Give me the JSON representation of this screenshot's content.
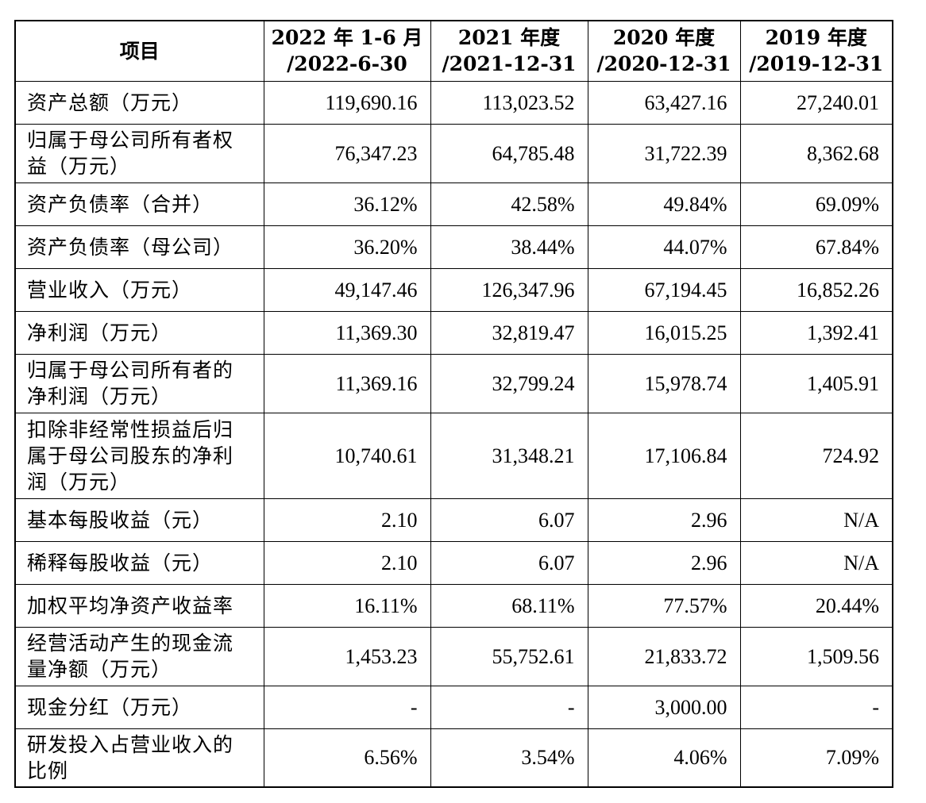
{
  "table": {
    "headers": [
      {
        "line1": "项目",
        "line2": ""
      },
      {
        "line1": "2022 年 1-6 月",
        "line2": "/2022-6-30"
      },
      {
        "line1": "2021 年度",
        "line2": "/2021-12-31"
      },
      {
        "line1": "2020 年度",
        "line2": "/2020-12-31"
      },
      {
        "line1": "2019 年度",
        "line2": "/2019-12-31"
      }
    ],
    "rows": [
      {
        "label": [
          "资产总额（万元）"
        ],
        "values": [
          "119,690.16",
          "113,023.52",
          "63,427.16",
          "27,240.01"
        ]
      },
      {
        "label": [
          "归属于母公司所有者权",
          "益（万元）"
        ],
        "values": [
          "76,347.23",
          "64,785.48",
          "31,722.39",
          "8,362.68"
        ]
      },
      {
        "label": [
          "资产负债率（合并）"
        ],
        "values": [
          "36.12%",
          "42.58%",
          "49.84%",
          "69.09%"
        ]
      },
      {
        "label": [
          "资产负债率（母公司）"
        ],
        "values": [
          "36.20%",
          "38.44%",
          "44.07%",
          "67.84%"
        ]
      },
      {
        "label": [
          "营业收入（万元）"
        ],
        "values": [
          "49,147.46",
          "126,347.96",
          "67,194.45",
          "16,852.26"
        ]
      },
      {
        "label": [
          "净利润（万元）"
        ],
        "values": [
          "11,369.30",
          "32,819.47",
          "16,015.25",
          "1,392.41"
        ]
      },
      {
        "label": [
          "归属于母公司所有者的",
          "净利润（万元）"
        ],
        "values": [
          "11,369.16",
          "32,799.24",
          "15,978.74",
          "1,405.91"
        ]
      },
      {
        "label": [
          "扣除非经常性损益后归",
          "属于母公司股东的净利",
          "润（万元）"
        ],
        "values": [
          "10,740.61",
          "31,348.21",
          "17,106.84",
          "724.92"
        ]
      },
      {
        "label": [
          "基本每股收益（元）"
        ],
        "values": [
          "2.10",
          "6.07",
          "2.96",
          "N/A"
        ]
      },
      {
        "label": [
          "稀释每股收益（元）"
        ],
        "values": [
          "2.10",
          "6.07",
          "2.96",
          "N/A"
        ]
      },
      {
        "label": [
          "加权平均净资产收益率"
        ],
        "values": [
          "16.11%",
          "68.11%",
          "77.57%",
          "20.44%"
        ]
      },
      {
        "label": [
          "经营活动产生的现金流",
          "量净额（万元）"
        ],
        "values": [
          "1,453.23",
          "55,752.61",
          "21,833.72",
          "1,509.56"
        ]
      },
      {
        "label": [
          "现金分红（万元）"
        ],
        "values": [
          "-",
          "-",
          "3,000.00",
          "-"
        ]
      },
      {
        "label": [
          "研发投入占营业收入的",
          "比例"
        ],
        "values": [
          "6.56%",
          "3.54%",
          "4.06%",
          "7.09%"
        ]
      }
    ]
  }
}
